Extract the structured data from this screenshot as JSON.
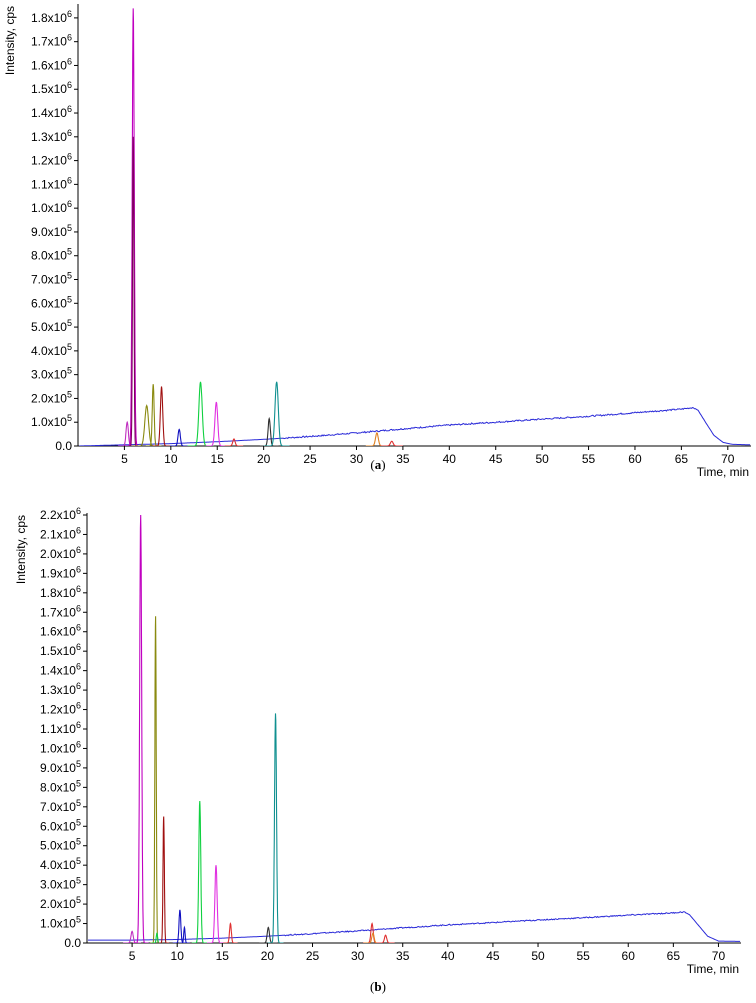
{
  "chart_data": [
    {
      "type": "line",
      "panel_label": "a",
      "xlabel": "Time, min",
      "ylabel": "Intensity, cps",
      "xlim": [
        0,
        72.5
      ],
      "ylim": [
        0,
        1850000
      ],
      "x_ticks": [
        5,
        10,
        15,
        20,
        25,
        30,
        35,
        40,
        45,
        50,
        55,
        60,
        65,
        70
      ],
      "x_tick_labels": [
        "5",
        "10",
        "15",
        "20",
        "25",
        "30",
        "35",
        "40",
        "45",
        "50",
        "55",
        "60",
        "65",
        "70"
      ],
      "y_ticks": [
        0,
        100000,
        200000,
        300000,
        400000,
        500000,
        600000,
        700000,
        800000,
        900000,
        1000000,
        1100000,
        1200000,
        1300000,
        1400000,
        1500000,
        1600000,
        1700000,
        1800000
      ],
      "y_tick_labels": [
        {
          "m": "0.0",
          "e": ""
        },
        {
          "m": "1.0x10",
          "e": "5"
        },
        {
          "m": "2.0x10",
          "e": "5"
        },
        {
          "m": "3.0x10",
          "e": "5"
        },
        {
          "m": "4.0x10",
          "e": "5"
        },
        {
          "m": "5.0x10",
          "e": "5"
        },
        {
          "m": "6.0x10",
          "e": "5"
        },
        {
          "m": "7.0x10",
          "e": "5"
        },
        {
          "m": "8.0x10",
          "e": "5"
        },
        {
          "m": "9.0x10",
          "e": "5"
        },
        {
          "m": "1.0x10",
          "e": "6"
        },
        {
          "m": "1.1x10",
          "e": "6"
        },
        {
          "m": "1.2x10",
          "e": "6"
        },
        {
          "m": "1.3x10",
          "e": "6"
        },
        {
          "m": "1.4x10",
          "e": "6"
        },
        {
          "m": "1.5x10",
          "e": "6"
        },
        {
          "m": "1.6x10",
          "e": "6"
        },
        {
          "m": "1.7x10",
          "e": "6"
        },
        {
          "m": "1.8x10",
          "e": "6"
        }
      ],
      "baseline": {
        "color": "#2a2ad8",
        "points": [
          [
            0,
            0
          ],
          [
            5,
            5000
          ],
          [
            10,
            10000
          ],
          [
            15,
            18000
          ],
          [
            20,
            28000
          ],
          [
            25,
            40000
          ],
          [
            30,
            55000
          ],
          [
            35,
            72000
          ],
          [
            40,
            88000
          ],
          [
            45,
            100000
          ],
          [
            50,
            113000
          ],
          [
            55,
            125000
          ],
          [
            60,
            140000
          ],
          [
            65,
            155000
          ],
          [
            66.3,
            162000
          ],
          [
            66.8,
            150000
          ],
          [
            67.6,
            100000
          ],
          [
            68.5,
            45000
          ],
          [
            69.5,
            15000
          ],
          [
            70.5,
            7000
          ],
          [
            72.5,
            5000
          ]
        ]
      },
      "peaks": [
        {
          "x": 5.3,
          "y": 100000,
          "w": 0.25,
          "color": "#c030c0"
        },
        {
          "x": 5.95,
          "y": 1840000,
          "w": 0.22,
          "color": "#c000c0"
        },
        {
          "x": 5.95,
          "y": 1300000,
          "w": 0.15,
          "color": "#800060"
        },
        {
          "x": 7.4,
          "y": 170000,
          "w": 0.4,
          "color": "#8a8a10"
        },
        {
          "x": 8.1,
          "y": 260000,
          "w": 0.2,
          "color": "#8a8a10"
        },
        {
          "x": 9.0,
          "y": 250000,
          "w": 0.25,
          "color": "#a01010"
        },
        {
          "x": 10.9,
          "y": 70000,
          "w": 0.25,
          "color": "#1010c0"
        },
        {
          "x": 13.2,
          "y": 270000,
          "w": 0.35,
          "color": "#10d040"
        },
        {
          "x": 14.9,
          "y": 185000,
          "w": 0.3,
          "color": "#e030e0"
        },
        {
          "x": 16.8,
          "y": 30000,
          "w": 0.25,
          "color": "#e03030"
        },
        {
          "x": 20.6,
          "y": 115000,
          "w": 0.25,
          "color": "#303030"
        },
        {
          "x": 21.4,
          "y": 270000,
          "w": 0.35,
          "color": "#109090"
        },
        {
          "x": 32.2,
          "y": 55000,
          "w": 0.3,
          "color": "#e08020"
        },
        {
          "x": 33.8,
          "y": 20000,
          "w": 0.3,
          "color": "#e03030"
        }
      ]
    },
    {
      "type": "line",
      "panel_label": "b",
      "xlabel": "Time, min",
      "ylabel": "Intensity, cps",
      "xlim": [
        0,
        72.5
      ],
      "ylim": [
        0,
        2200000
      ],
      "x_ticks": [
        5,
        10,
        15,
        20,
        25,
        30,
        35,
        40,
        45,
        50,
        55,
        60,
        65,
        70
      ],
      "x_tick_labels": [
        "5",
        "10",
        "15",
        "20",
        "25",
        "30",
        "35",
        "40",
        "45",
        "50",
        "55",
        "60",
        "65",
        "70"
      ],
      "y_ticks": [
        0,
        100000,
        200000,
        300000,
        400000,
        500000,
        600000,
        700000,
        800000,
        900000,
        1000000,
        1100000,
        1200000,
        1300000,
        1400000,
        1500000,
        1600000,
        1700000,
        1800000,
        1900000,
        2000000,
        2100000,
        2200000
      ],
      "y_tick_labels": [
        {
          "m": "0.0",
          "e": ""
        },
        {
          "m": "1.0x10",
          "e": "5"
        },
        {
          "m": "2.0x10",
          "e": "5"
        },
        {
          "m": "3.0x10",
          "e": "5"
        },
        {
          "m": "4.0x10",
          "e": "5"
        },
        {
          "m": "5.0x10",
          "e": "5"
        },
        {
          "m": "6.0x10",
          "e": "5"
        },
        {
          "m": "7.0x10",
          "e": "5"
        },
        {
          "m": "8.0x10",
          "e": "5"
        },
        {
          "m": "9.0x10",
          "e": "5"
        },
        {
          "m": "1.0x10",
          "e": "6"
        },
        {
          "m": "1.1x10",
          "e": "6"
        },
        {
          "m": "1.2x10",
          "e": "6"
        },
        {
          "m": "1.3x10",
          "e": "6"
        },
        {
          "m": "1.4x10",
          "e": "6"
        },
        {
          "m": "1.5x10",
          "e": "6"
        },
        {
          "m": "1.6x10",
          "e": "6"
        },
        {
          "m": "1.7x10",
          "e": "6"
        },
        {
          "m": "1.8x10",
          "e": "6"
        },
        {
          "m": "1.9x10",
          "e": "6"
        },
        {
          "m": "2.0x10",
          "e": "6"
        },
        {
          "m": "2.1x10",
          "e": "6"
        },
        {
          "m": "2.2x10",
          "e": "6"
        }
      ],
      "baseline": {
        "color": "#2a2ad8",
        "points": [
          [
            0,
            15000
          ],
          [
            5,
            15000
          ],
          [
            10,
            18000
          ],
          [
            15,
            25000
          ],
          [
            20,
            35000
          ],
          [
            25,
            48000
          ],
          [
            30,
            62000
          ],
          [
            35,
            78000
          ],
          [
            40,
            93000
          ],
          [
            45,
            105000
          ],
          [
            50,
            118000
          ],
          [
            55,
            130000
          ],
          [
            60,
            143000
          ],
          [
            65,
            155000
          ],
          [
            66.2,
            160000
          ],
          [
            66.8,
            145000
          ],
          [
            67.8,
            90000
          ],
          [
            68.8,
            35000
          ],
          [
            70,
            10000
          ],
          [
            72.5,
            8000
          ]
        ]
      },
      "peaks": [
        {
          "x": 5.0,
          "y": 60000,
          "w": 0.25,
          "color": "#c030c0"
        },
        {
          "x": 5.95,
          "y": 2200000,
          "w": 0.22,
          "color": "#c000c0"
        },
        {
          "x": 7.6,
          "y": 1680000,
          "w": 0.15,
          "color": "#8a8a10"
        },
        {
          "x": 7.75,
          "y": 50000,
          "w": 0.15,
          "color": "#10d040"
        },
        {
          "x": 8.5,
          "y": 650000,
          "w": 0.15,
          "color": "#a01010"
        },
        {
          "x": 10.3,
          "y": 170000,
          "w": 0.2,
          "color": "#1010c0"
        },
        {
          "x": 10.8,
          "y": 80000,
          "w": 0.15,
          "color": "#1010c0"
        },
        {
          "x": 12.5,
          "y": 730000,
          "w": 0.22,
          "color": "#10d040"
        },
        {
          "x": 14.3,
          "y": 400000,
          "w": 0.25,
          "color": "#e030e0"
        },
        {
          "x": 15.9,
          "y": 100000,
          "w": 0.2,
          "color": "#e03030"
        },
        {
          "x": 20.1,
          "y": 80000,
          "w": 0.25,
          "color": "#303030"
        },
        {
          "x": 20.9,
          "y": 1180000,
          "w": 0.22,
          "color": "#109090"
        },
        {
          "x": 31.6,
          "y": 100000,
          "w": 0.25,
          "color": "#e03030"
        },
        {
          "x": 31.7,
          "y": 50000,
          "w": 0.25,
          "color": "#e08020"
        },
        {
          "x": 33.1,
          "y": 40000,
          "w": 0.25,
          "color": "#e03030"
        }
      ]
    }
  ]
}
